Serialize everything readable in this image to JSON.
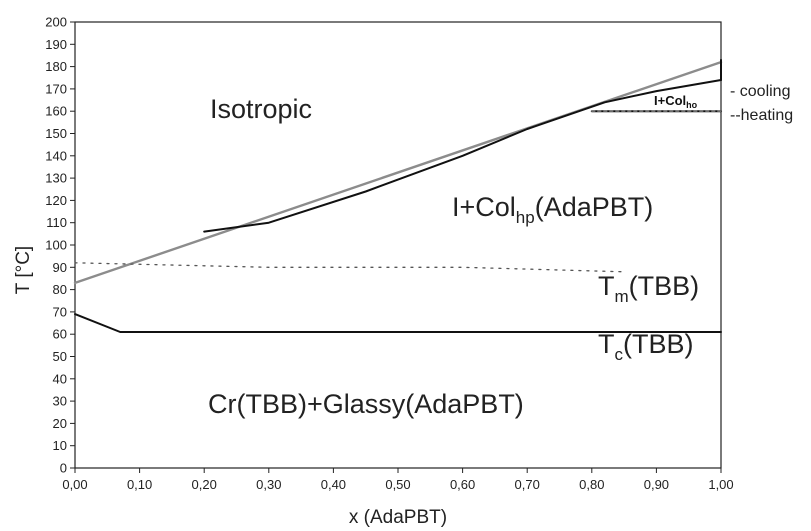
{
  "chart_data": {
    "type": "line",
    "xlabel": "x (AdaPBT)",
    "ylabel": "T [°C]",
    "xlim": [
      0,
      1
    ],
    "ylim": [
      0,
      200
    ],
    "x_ticks": [
      "0,00",
      "0,10",
      "0,20",
      "0,30",
      "0,40",
      "0,50",
      "0,60",
      "0,70",
      "0,80",
      "0,90",
      "1,00"
    ],
    "y_ticks": [
      "0",
      "10",
      "20",
      "30",
      "40",
      "50",
      "60",
      "70",
      "80",
      "90",
      "100",
      "110",
      "120",
      "130",
      "140",
      "150",
      "160",
      "170",
      "180",
      "190",
      "200"
    ],
    "legend": {
      "cooling": "- cooling",
      "heating": "--heating"
    },
    "region_labels": {
      "isotropic": "Isotropic",
      "i_col_pre": "I+Col",
      "i_col_sub": "hp",
      "i_col_post": "(AdaPBT)",
      "tm_pre": "T",
      "tm_sub": "m",
      "tm_post": "(TBB)",
      "tc_pre": "T",
      "tc_sub": "c",
      "tc_post": "(TBB)",
      "cr_glassy": "Cr(TBB)+Glassy(AdaPBT)",
      "small_pre": "I+Col",
      "small_sub": "ho"
    },
    "series": [
      {
        "style": "gray",
        "x": [
          0.0,
          1.0
        ],
        "y": [
          83,
          182
        ]
      },
      {
        "style": "black",
        "x": [
          0.2,
          0.3,
          0.45,
          0.6,
          0.7,
          0.82,
          0.9,
          1.0
        ],
        "y": [
          106,
          110,
          124,
          140,
          152,
          164,
          169,
          174
        ]
      },
      {
        "style": "black",
        "x": [
          0.8,
          1.0
        ],
        "y": [
          160,
          160
        ]
      },
      {
        "style": "black",
        "x": [
          1.0,
          1.0
        ],
        "y": [
          174,
          183
        ]
      },
      {
        "style": "black",
        "x": [
          0.0,
          0.07,
          1.0
        ],
        "y": [
          69,
          61,
          61
        ]
      },
      {
        "style": "dashed",
        "x": [
          0.0,
          0.3,
          0.6,
          0.85
        ],
        "y": [
          92,
          90,
          90,
          88
        ]
      },
      {
        "style": "gray-dashed",
        "x": [
          0.8,
          1.0
        ],
        "y": [
          160,
          160
        ]
      }
    ]
  }
}
